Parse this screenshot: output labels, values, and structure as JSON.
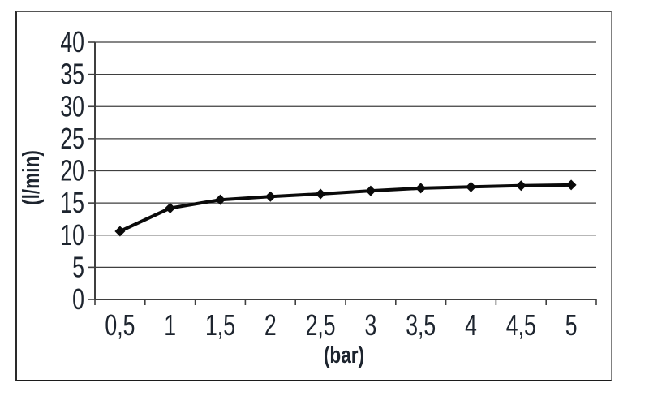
{
  "page": {
    "background": "#ffffff"
  },
  "frame": {
    "border_top": "#555555",
    "border_right": "#808080",
    "border_bottom": "#1c1c1c",
    "border_left": "#2a2a2a"
  },
  "chart_data": {
    "type": "line",
    "title": "",
    "xlabel": "(bar)",
    "ylabel": "(l/min)",
    "x": [
      0.5,
      1,
      1.5,
      2,
      2.5,
      3,
      3.5,
      4,
      4.5,
      5
    ],
    "x_tick_labels": [
      "0,5",
      "1",
      "1,5",
      "2",
      "2,5",
      "3",
      "3,5",
      "4",
      "4,5",
      "5"
    ],
    "values": [
      10.6,
      14.2,
      15.5,
      16.0,
      16.4,
      16.9,
      17.3,
      17.5,
      17.7,
      17.8
    ],
    "ylim": [
      0,
      40
    ],
    "y_ticks": [
      0,
      5,
      10,
      15,
      20,
      25,
      30,
      35,
      40
    ],
    "grid": "horizontal",
    "legend": "none",
    "marker": "diamond",
    "line_color": "#0a0a0a",
    "text_color": "#1d242e",
    "grid_color": "#3f3f3f",
    "axis_color": "#3f3f3f"
  }
}
